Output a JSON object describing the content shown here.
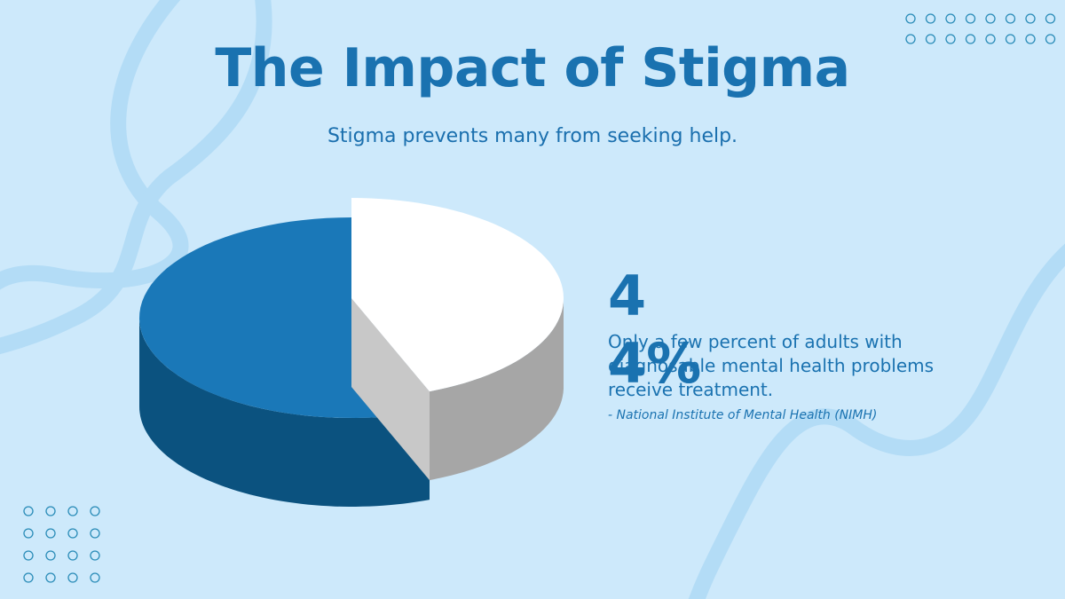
{
  "slide": {
    "title": "The Impact of Stigma",
    "subtitle": "Stigma prevents many from seeking help.",
    "stat": "44%",
    "body": "Only a few percent of adults with diagnosable mental health problems receive treatment.",
    "source": "- National Institute of Mental Health (NIMH)"
  },
  "chart_data": {
    "type": "pie",
    "values": [
      44,
      56
    ],
    "colors": [
      "#ffffff",
      "#1a78b8"
    ],
    "side_colors": [
      "#a6a6a6",
      "#0b527f"
    ]
  }
}
